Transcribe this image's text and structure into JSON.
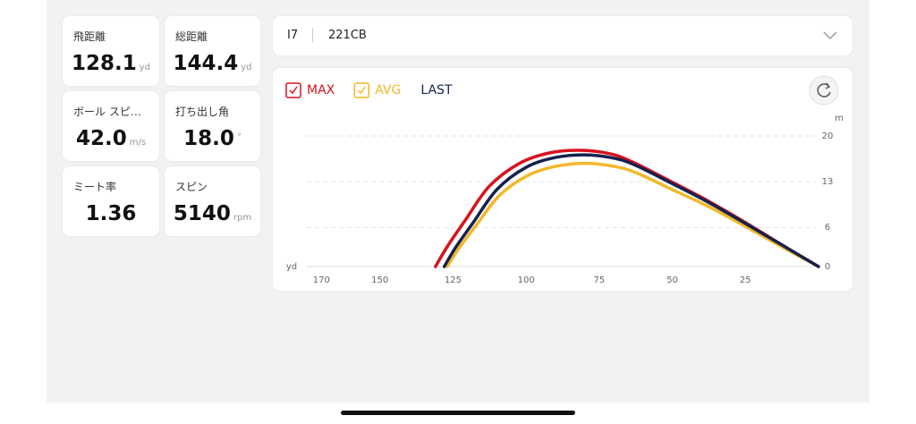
{
  "stats": [
    {
      "label": "飛距離",
      "value": "128.1",
      "unit": "yd"
    },
    {
      "label": "総距離",
      "value": "144.4",
      "unit": "yd"
    },
    {
      "label": "ボール スピ…",
      "value": "42.0",
      "unit": "m/s"
    },
    {
      "label": "打ち出し角",
      "value": "18.0",
      "unit": "°"
    },
    {
      "label": "ミート率",
      "value": "1.36"
    },
    {
      "label": "スピン",
      "value": "5140",
      "unit": "rpm"
    }
  ],
  "club": {
    "number": "I7",
    "model": "221CB"
  },
  "chart_data": {
    "type": "line",
    "x_label": "yd",
    "y_label": "m",
    "xlim": [
      175,
      0
    ],
    "ylim": [
      0,
      20
    ],
    "xticks": [
      170,
      150,
      125,
      100,
      75,
      50,
      25
    ],
    "yticks": [
      20,
      13,
      6,
      0
    ],
    "grid": true,
    "series": [
      {
        "name": "MAX",
        "color": "#d8121e",
        "checked": true,
        "x": [
          0,
          12.8,
          25.6,
          38.4,
          51.2,
          64,
          71.6,
          81.9,
          92.1,
          102.3,
          112.6,
          120.8,
          126.9,
          131
        ],
        "values": [
          0,
          3.4,
          6.9,
          10.2,
          13.2,
          16.1,
          17.3,
          17.8,
          17.4,
          15.8,
          12.3,
          7.1,
          3.1,
          0
        ]
      },
      {
        "name": "AVG",
        "color": "#f2b829",
        "checked": true,
        "x": [
          0,
          12.4,
          24.8,
          37.2,
          49.6,
          62,
          69.4,
          79.4,
          89.3,
          99.2,
          109.1,
          117.1,
          123,
          127
        ],
        "values": [
          0,
          3,
          6.1,
          9.1,
          11.7,
          14.3,
          15.3,
          15.8,
          15.4,
          14,
          10.9,
          6.3,
          2.8,
          0
        ]
      },
      {
        "name": "LAST",
        "color": "#15224f",
        "x": [
          0,
          12.5,
          25,
          37.5,
          50,
          62.5,
          70,
          80,
          90,
          100,
          110,
          118,
          124,
          128
        ],
        "values": [
          0,
          3.3,
          6.6,
          9.8,
          12.7,
          15.5,
          16.6,
          17.1,
          16.7,
          15.2,
          11.8,
          6.8,
          3,
          0
        ]
      }
    ]
  }
}
